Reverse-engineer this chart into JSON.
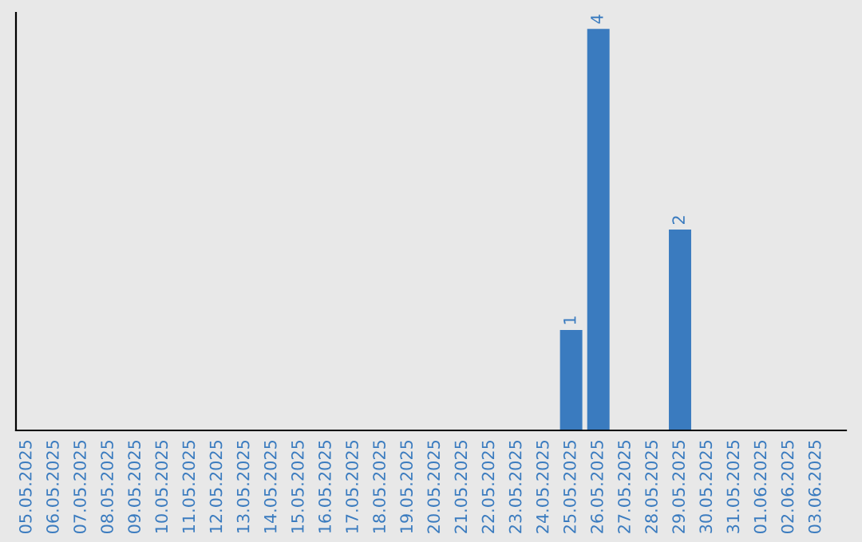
{
  "chart_data": {
    "type": "bar",
    "categories": [
      "05.05.2025",
      "06.05.2025",
      "07.05.2025",
      "08.05.2025",
      "09.05.2025",
      "10.05.2025",
      "11.05.2025",
      "12.05.2025",
      "13.05.2025",
      "14.05.2025",
      "15.05.2025",
      "16.05.2025",
      "17.05.2025",
      "18.05.2025",
      "19.05.2025",
      "20.05.2025",
      "21.05.2025",
      "22.05.2025",
      "23.05.2025",
      "24.05.2025",
      "25.05.2025",
      "26.05.2025",
      "27.05.2025",
      "28.05.2025",
      "29.05.2025",
      "30.05.2025",
      "31.05.2025",
      "01.06.2025",
      "02.06.2025",
      "03.06.2025"
    ],
    "values": [
      null,
      null,
      null,
      null,
      null,
      null,
      null,
      null,
      null,
      null,
      null,
      null,
      null,
      null,
      null,
      null,
      null,
      null,
      null,
      null,
      1,
      4,
      null,
      null,
      2,
      null,
      null,
      null,
      null,
      null
    ],
    "data_labels": true,
    "color": "#3a7bbf",
    "tick_labels": "x",
    "grid": false,
    "legend": false
  }
}
